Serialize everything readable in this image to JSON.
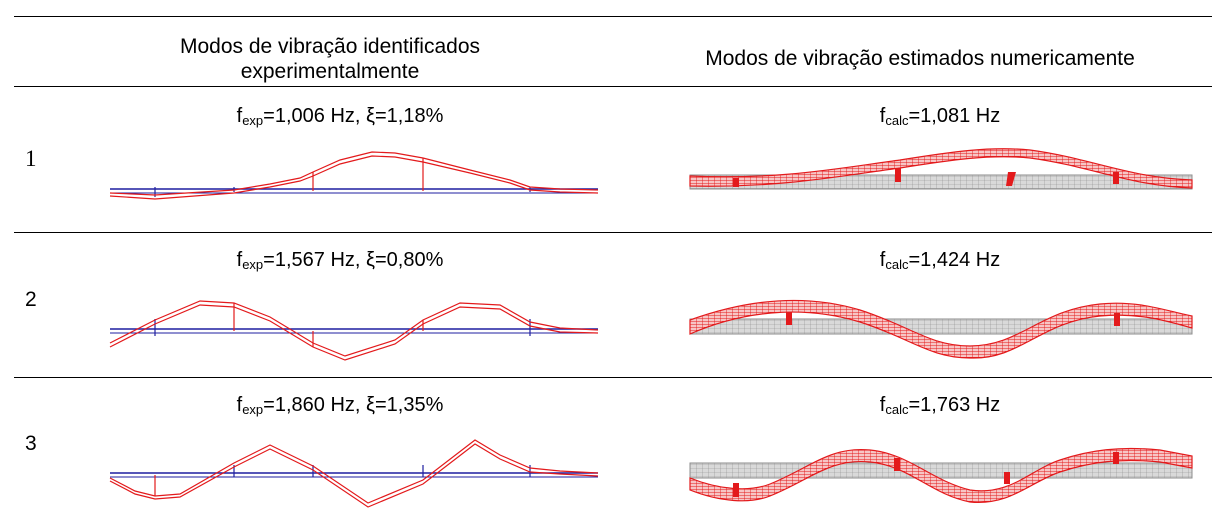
{
  "header": {
    "left": "Modos de vibração identificados experimentalmente",
    "right": "Modos de vibração estimados numericamente"
  },
  "rows": [
    {
      "label": "1",
      "experimental": {
        "f_symbol": "f",
        "f_sub": "exp",
        "f_value": "=1,006 Hz, ξ=1,18%"
      },
      "numerical": {
        "f_symbol": "f",
        "f_sub": "calc",
        "f_value": "=1,081 Hz"
      }
    },
    {
      "label": "2",
      "experimental": {
        "f_symbol": "f",
        "f_sub": "exp",
        "f_value": "=1,567 Hz, ξ=0,80%"
      },
      "numerical": {
        "f_symbol": "f",
        "f_sub": "calc",
        "f_value": "=1,424 Hz"
      }
    },
    {
      "label": "3",
      "experimental": {
        "f_symbol": "f",
        "f_sub": "exp",
        "f_value": "=1,860 Hz, ξ=1,35%"
      },
      "numerical": {
        "f_symbol": "f",
        "f_sub": "calc",
        "f_value": "=1,763 Hz"
      }
    }
  ],
  "colors": {
    "mode_shape": "#e31a1c",
    "undeformed": "#1f1fa0",
    "mesh": "#8c8c8c"
  }
}
